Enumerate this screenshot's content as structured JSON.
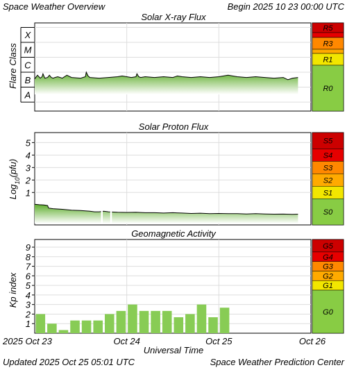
{
  "header": {
    "left": "Space Weather Overview",
    "right": "Begin 2025 10 23 00:00 UTC"
  },
  "footer": {
    "left": "Updated 2025 Oct 25 05:01 UTC",
    "right": "Space Weather Prediction Center"
  },
  "colors": {
    "extreme": "#cc0000",
    "severe": "#e60000",
    "strong": "#ff8800",
    "moderate": "#ffaa00",
    "minor": "#f2e600",
    "quiet": "#88cc44",
    "bar_fill": "#88cc55",
    "flux_line": "#000000"
  },
  "chart_data": [
    {
      "type": "area",
      "title": "Solar X-ray Flux",
      "ylabel": "Flare Class",
      "y_categories": [
        "A",
        "B",
        "C",
        "M",
        "X"
      ],
      "ylim": [
        -8.6,
        -2.7
      ],
      "x_unit": "days since 2025-10-23 00:00 UTC",
      "x_range": [
        0,
        3.0
      ],
      "x": [
        0,
        0.03,
        0.06,
        0.08,
        0.09,
        0.11,
        0.14,
        0.16,
        0.18,
        0.2,
        0.22,
        0.25,
        0.3,
        0.35,
        0.4,
        0.5,
        0.55,
        0.56,
        0.58,
        0.6,
        0.7,
        0.8,
        0.9,
        0.95,
        1.0,
        1.05,
        1.1,
        1.11,
        1.13,
        1.15,
        1.2,
        1.3,
        1.4,
        1.5,
        1.55,
        1.6,
        1.7,
        1.8,
        1.9,
        2.0,
        2.05,
        2.1,
        2.2,
        2.3,
        2.4,
        2.5,
        2.6,
        2.7,
        2.75,
        2.8,
        2.86
      ],
      "y": [
        -6.45,
        -6.2,
        -6.4,
        -6.3,
        -6.1,
        -6.4,
        -6.35,
        -6.2,
        -6.35,
        -6.4,
        -6.35,
        -6.3,
        -6.4,
        -6.2,
        -6.35,
        -6.4,
        -6.3,
        -6.0,
        -6.25,
        -6.35,
        -6.4,
        -6.35,
        -6.3,
        -6.25,
        -6.3,
        -6.35,
        -6.3,
        -6.1,
        -6.3,
        -6.35,
        -6.3,
        -6.35,
        -6.3,
        -6.35,
        -6.25,
        -6.3,
        -6.35,
        -6.3,
        -6.35,
        -6.3,
        -6.25,
        -6.2,
        -6.3,
        -6.35,
        -6.3,
        -6.35,
        -6.4,
        -6.35,
        -6.5,
        -6.4,
        -6.35
      ],
      "scale_labels": [
        "R0",
        "R1",
        "R3",
        "R5"
      ]
    },
    {
      "type": "area",
      "title": "Solar Proton Flux",
      "ylabel": "Log10(pfu)",
      "y_ticks": [
        1,
        2,
        3,
        4,
        5
      ],
      "ylim": [
        -1.6,
        5.8
      ],
      "x_unit": "days since 2025-10-23 00:00 UTC",
      "x_range": [
        0,
        3.0
      ],
      "x": [
        0,
        0.05,
        0.1,
        0.14,
        0.15,
        0.2,
        0.3,
        0.4,
        0.5,
        0.6,
        0.65,
        0.7,
        0.75,
        0.8,
        0.9,
        1.0,
        1.1,
        1.2,
        1.3,
        1.4,
        1.5,
        1.6,
        1.7,
        1.8,
        1.9,
        2.0,
        2.1,
        2.2,
        2.3,
        2.4,
        2.5,
        2.6,
        2.7,
        2.8,
        2.86
      ],
      "y": [
        0.05,
        0.02,
        0.0,
        -0.05,
        -0.25,
        -0.3,
        -0.35,
        -0.42,
        -0.45,
        -0.5,
        -0.55,
        -0.55,
        -0.5,
        -0.55,
        -0.58,
        -0.6,
        -0.58,
        -0.62,
        -0.62,
        -0.65,
        -0.62,
        -0.65,
        -0.68,
        -0.66,
        -0.7,
        -0.68,
        -0.7,
        -0.7,
        -0.72,
        -0.7,
        -0.72,
        -0.74,
        -0.73,
        -0.75,
        -0.74
      ],
      "scale_labels": [
        "S0",
        "S1",
        "S2",
        "S3",
        "S4",
        "S5"
      ]
    },
    {
      "type": "bar",
      "title": "Geomagnetic Activity",
      "ylabel": "Kp index",
      "y_ticks": [
        1,
        2,
        3,
        4,
        5,
        6,
        7,
        8,
        9
      ],
      "ylim": [
        0,
        9.8
      ],
      "x_unit": "days since 2025-10-23 00:00 UTC",
      "x_range": [
        0,
        3.0
      ],
      "bar_width_days": 0.125,
      "x": [
        0.0,
        0.125,
        0.25,
        0.375,
        0.5,
        0.625,
        0.75,
        0.875,
        1.0,
        1.125,
        1.25,
        1.375,
        1.5,
        1.625,
        1.75,
        1.875,
        2.0,
        2.125
      ],
      "values": [
        2.0,
        1.0,
        0.33,
        1.33,
        1.33,
        1.33,
        2.0,
        2.33,
        3.0,
        2.33,
        2.33,
        2.33,
        1.67,
        2.0,
        3.0,
        1.67,
        2.67,
        0
      ],
      "scale_labels": [
        "G0",
        "G1",
        "G2",
        "G3",
        "G4",
        "G5"
      ]
    }
  ],
  "x_axis": {
    "tick_labels": [
      "2025 Oct 23",
      "Oct 24",
      "Oct 25",
      "Oct 26"
    ],
    "tick_values": [
      0,
      1,
      2,
      3
    ],
    "xlabel": "Universal Time"
  }
}
